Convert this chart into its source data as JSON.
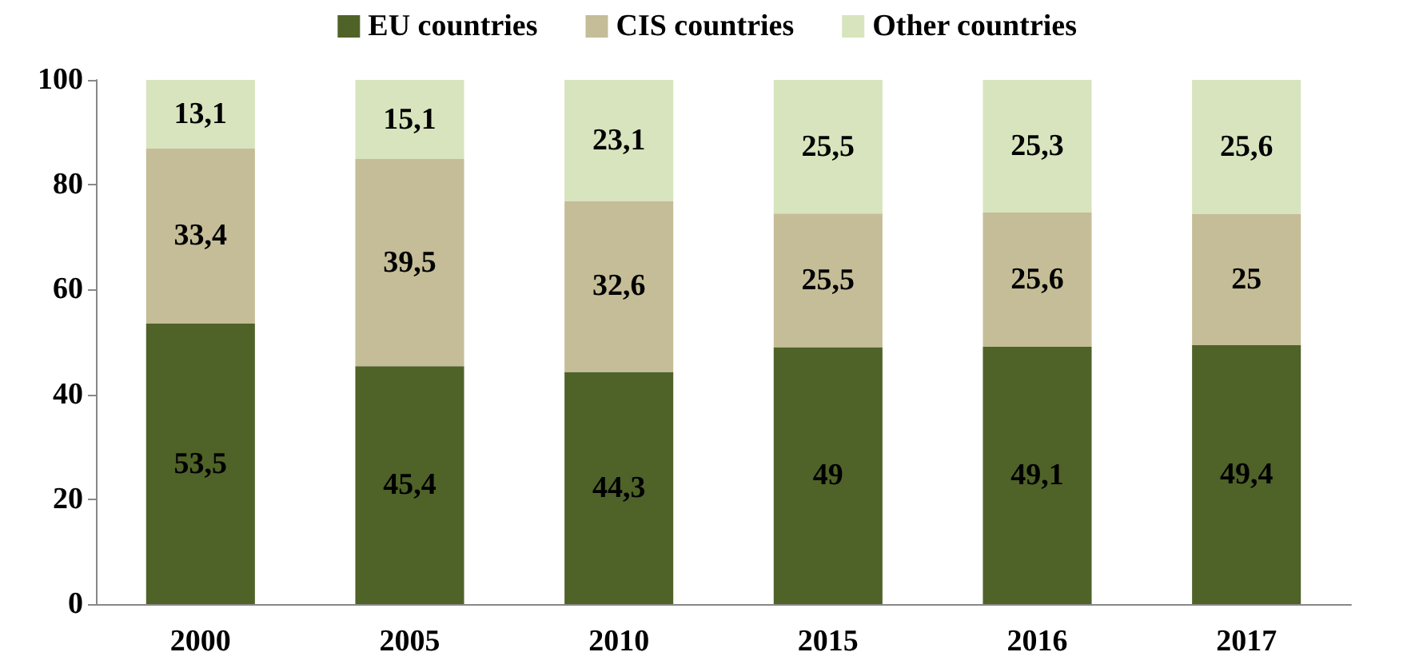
{
  "chart_data": {
    "type": "bar",
    "stacked": true,
    "categories": [
      "2000",
      "2005",
      "2010",
      "2015",
      "2016",
      "2017"
    ],
    "series": [
      {
        "name": "EU countries",
        "color": "#4f6228",
        "values": [
          53.5,
          45.4,
          44.3,
          49,
          49.1,
          49.4
        ],
        "value_labels": [
          "53,5",
          "45,4",
          "44,3",
          "49",
          "49,1",
          "49,4"
        ]
      },
      {
        "name": "CIS countries",
        "color": "#c4bd97",
        "values": [
          33.4,
          39.5,
          32.6,
          25.5,
          25.6,
          25
        ],
        "value_labels": [
          "33,4",
          "39,5",
          "32,6",
          "25,5",
          "25,6",
          "25"
        ]
      },
      {
        "name": "Other countries",
        "color": "#d7e4bd",
        "values": [
          13.1,
          15.1,
          23.1,
          25.5,
          25.3,
          25.6
        ],
        "value_labels": [
          "13,1",
          "15,1",
          "23,1",
          "25,5",
          "25,3",
          "25,6"
        ]
      }
    ],
    "ylim": [
      0,
      100
    ],
    "yticks": [
      0,
      20,
      40,
      60,
      80,
      100
    ],
    "legend": "top",
    "grid": false
  }
}
